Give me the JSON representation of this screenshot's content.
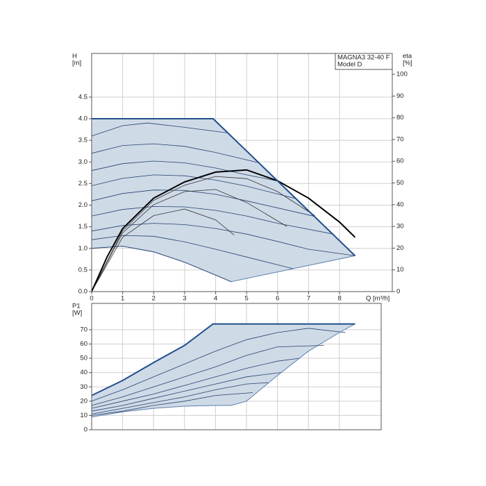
{
  "chart_data": [
    {
      "type": "line",
      "y_label": "H",
      "y_unit": "[m]",
      "y2_label": "eta",
      "y2_unit": "[%]",
      "x_label": "Q [m³/h]",
      "legend": [
        "MAGNA3 32-40 F",
        "Model D"
      ],
      "xlim": [
        0,
        9.7
      ],
      "ylim": [
        0,
        5.51
      ],
      "y2lim": [
        0,
        109.6
      ],
      "xticks": [
        0,
        1,
        2,
        3,
        4,
        5,
        6,
        7,
        8
      ],
      "yticks": [
        {
          "value": 0,
          "label": "0.0"
        },
        0.5,
        {
          "value": 1,
          "label": "1.0"
        },
        1.5,
        {
          "value": 2,
          "label": "2.0"
        },
        2.5,
        {
          "value": 3,
          "label": "3.0"
        },
        3.5,
        {
          "value": 4,
          "label": "4.0"
        },
        4.5
      ],
      "y2ticks": [
        0,
        10,
        20,
        30,
        40,
        50,
        60,
        70,
        80,
        90,
        100
      ],
      "grid": true,
      "envelope": {
        "x": [
          0,
          3.92,
          8.5,
          4.5,
          4,
          3,
          2,
          1,
          0
        ],
        "values": [
          4.0,
          4.0,
          0.83,
          0.23,
          0.38,
          0.68,
          0.92,
          1.05,
          1.0
        ],
        "fill": "#cfdae7",
        "stroke": "#5a7fab"
      },
      "max_curve": {
        "x": [
          0,
          3.92,
          8.5
        ],
        "values": [
          4.0,
          4.0,
          0.83
        ],
        "color": "#1f4e8c"
      },
      "series": [
        {
          "x": [
            0,
            1,
            1.8,
            3,
            4.4
          ],
          "values": [
            3.6,
            3.84,
            3.9,
            3.8,
            3.67
          ],
          "color": "#23406e"
        },
        {
          "x": [
            0,
            1,
            2,
            3,
            4,
            5.4
          ],
          "values": [
            3.2,
            3.38,
            3.42,
            3.36,
            3.22,
            2.98
          ],
          "color": "#23406e"
        },
        {
          "x": [
            0,
            1,
            2,
            3,
            4,
            5,
            6
          ],
          "values": [
            2.8,
            2.96,
            3.02,
            2.98,
            2.86,
            2.7,
            2.56
          ],
          "color": "#23406e"
        },
        {
          "x": [
            0,
            1,
            2,
            3,
            4,
            5,
            6.6
          ],
          "values": [
            2.45,
            2.62,
            2.7,
            2.68,
            2.58,
            2.44,
            2.15
          ],
          "color": "#23406e"
        },
        {
          "x": [
            0,
            1,
            2,
            3,
            4,
            5,
            7.2
          ],
          "values": [
            2.1,
            2.27,
            2.35,
            2.34,
            2.25,
            2.1,
            1.74
          ],
          "color": "#23406e"
        },
        {
          "x": [
            0,
            1,
            2,
            3,
            4,
            5,
            6,
            7.8
          ],
          "values": [
            1.75,
            1.9,
            1.97,
            1.96,
            1.88,
            1.75,
            1.58,
            1.33
          ],
          "color": "#23406e"
        },
        {
          "x": [
            0,
            1,
            2,
            3,
            4,
            5,
            6,
            7,
            8.5
          ],
          "values": [
            1.4,
            1.53,
            1.58,
            1.55,
            1.46,
            1.33,
            1.16,
            0.98,
            0.83
          ],
          "color": "#23406e"
        },
        {
          "x": [
            0,
            1,
            2,
            3,
            4,
            5,
            6.5
          ],
          "values": [
            1.2,
            1.3,
            1.28,
            1.15,
            0.98,
            0.8,
            0.53
          ],
          "color": "#23406e"
        },
        {
          "x": [
            0,
            1,
            2,
            3,
            4,
            4.5
          ],
          "values": [
            1.0,
            1.05,
            0.92,
            0.68,
            0.38,
            0.23
          ],
          "color": "#23406e"
        },
        {
          "axis": "y2",
          "x": [
            0,
            1,
            2,
            3,
            4,
            5,
            6,
            7.2
          ],
          "values": [
            0,
            28,
            42,
            49,
            53,
            52,
            46,
            35
          ],
          "color": "#333333"
        },
        {
          "axis": "y2",
          "x": [
            0,
            1,
            2,
            3,
            4,
            5,
            6.3
          ],
          "values": [
            0,
            27,
            40,
            46,
            47,
            41,
            30
          ],
          "color": "#333333"
        },
        {
          "axis": "y2",
          "x": [
            0,
            1,
            2,
            3,
            4,
            4.6
          ],
          "values": [
            0,
            25,
            35,
            38,
            33,
            26
          ],
          "color": "#333333"
        },
        {
          "axis": "y2",
          "x": [
            0,
            0.5,
            1,
            2,
            3,
            4,
            5,
            6,
            7,
            8,
            8.5
          ],
          "values": [
            0,
            16,
            29,
            43,
            50.5,
            55,
            56,
            51,
            43,
            32,
            25
          ],
          "color": "#000000",
          "width": 2
        }
      ]
    },
    {
      "type": "line",
      "y_label": "P1",
      "y_unit": "[W]",
      "xlim": [
        0,
        9.35
      ],
      "ylim": [
        0,
        88.4
      ],
      "yticks": [
        0,
        10,
        20,
        30,
        40,
        50,
        60,
        70
      ],
      "grid": true,
      "envelope": {
        "x": [
          0,
          1,
          2,
          3,
          3.92,
          8.5,
          8,
          7,
          6,
          5,
          4.5,
          4,
          3,
          2,
          1,
          0
        ],
        "values": [
          24,
          34.5,
          47,
          59,
          74,
          74,
          68,
          55,
          38,
          20,
          17,
          17,
          16.5,
          15,
          12.5,
          9
        ],
        "fill": "#cfdae7",
        "stroke": "#5a7fab"
      },
      "max_curve": {
        "x": [
          0,
          1,
          2,
          3,
          3.92,
          8.5
        ],
        "values": [
          24,
          34.5,
          47,
          59,
          74,
          74
        ],
        "color": "#1f4e8c"
      },
      "series": [
        {
          "x": [
            0,
            1,
            2,
            3,
            4,
            5,
            6,
            7,
            8.2
          ],
          "values": [
            20,
            28,
            37,
            46,
            55,
            63,
            68,
            71,
            68
          ],
          "color": "#23406e"
        },
        {
          "x": [
            0,
            1,
            2,
            3,
            4,
            5,
            6,
            7.5
          ],
          "values": [
            17,
            23,
            30,
            37,
            44,
            52,
            58,
            59
          ],
          "color": "#23406e"
        },
        {
          "x": [
            0,
            1,
            2,
            3,
            4,
            5,
            6,
            6.7
          ],
          "values": [
            15,
            20,
            25,
            31,
            37,
            43,
            48,
            50
          ],
          "color": "#23406e"
        },
        {
          "x": [
            0,
            1,
            2,
            3,
            4,
            5,
            6.1
          ],
          "values": [
            13,
            17,
            22,
            27,
            32,
            37,
            40
          ],
          "color": "#23406e"
        },
        {
          "x": [
            0,
            1,
            2,
            3,
            4,
            5,
            5.7
          ],
          "values": [
            11,
            15,
            19,
            23,
            28,
            32,
            33
          ],
          "color": "#23406e"
        },
        {
          "x": [
            0,
            1,
            2,
            3,
            4,
            5.2
          ],
          "values": [
            10,
            13,
            17,
            20,
            24,
            26
          ],
          "color": "#23406e"
        }
      ]
    }
  ]
}
